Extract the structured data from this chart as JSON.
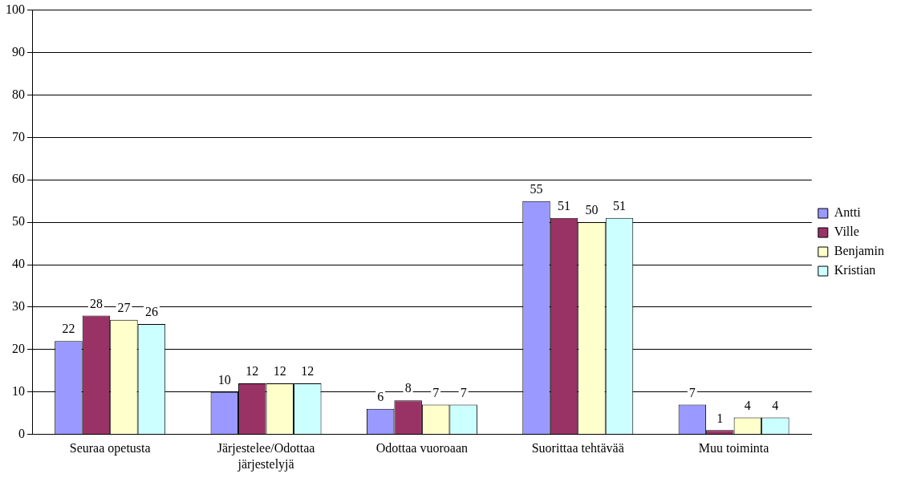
{
  "chart_data": {
    "type": "bar",
    "categories": [
      "Seuraa opetusta",
      "Järjestelee/Odottaa järjestelyjä",
      "Odottaa vuoroaan",
      "Suorittaa tehtävää",
      "Muu toiminta"
    ],
    "series": [
      {
        "name": "Antti",
        "color": "#9999ff",
        "values": [
          22,
          10,
          6,
          55,
          7
        ]
      },
      {
        "name": "Ville",
        "color": "#993366",
        "values": [
          28,
          12,
          8,
          51,
          1
        ]
      },
      {
        "name": "Benjamin",
        "color": "#ffffcc",
        "values": [
          27,
          12,
          7,
          50,
          4
        ]
      },
      {
        "name": "Kristian",
        "color": "#ccffff",
        "values": [
          26,
          12,
          7,
          51,
          4
        ]
      }
    ],
    "ylim": [
      0,
      100
    ],
    "yticks": [
      0,
      10,
      20,
      30,
      40,
      50,
      60,
      70,
      80,
      90,
      100
    ],
    "grid": "y",
    "legend": "right",
    "data_labels": true
  }
}
